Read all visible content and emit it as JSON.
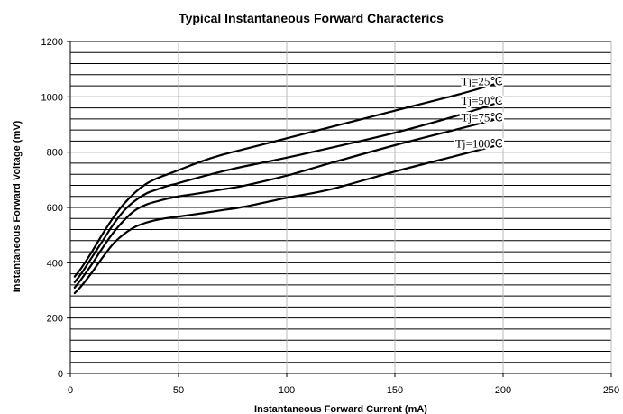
{
  "chart_data": {
    "type": "line",
    "title": "Typical Instantaneous Forward Characterics",
    "xlabel": "Instantaneous Forward Current (mA)",
    "ylabel": "Instantaneous Forward Voltage (mV)",
    "xlim": [
      0,
      250
    ],
    "ylim": [
      0,
      1200
    ],
    "x_ticks": [
      0,
      50,
      100,
      150,
      200,
      250
    ],
    "y_ticks": [
      0,
      200,
      400,
      600,
      800,
      1000,
      1200
    ],
    "x_grid_lines": [
      50,
      100,
      150,
      200,
      250
    ],
    "y_grid_lines": [
      40,
      80,
      120,
      160,
      200,
      240,
      280,
      320,
      360,
      400,
      440,
      480,
      520,
      560,
      600,
      640,
      680,
      720,
      760,
      800,
      840,
      880,
      920,
      960,
      1000,
      1040,
      1080,
      1120,
      1160,
      1200
    ],
    "grid": true,
    "colors": {
      "series": "#000000",
      "grid_major_x": "#b8b8b8",
      "grid_minor_y": "#000000",
      "background": "#ffffff"
    },
    "series": [
      {
        "name": "Tj=25℃",
        "x": [
          2,
          5,
          10,
          15,
          20,
          25,
          30,
          35,
          40,
          45,
          50,
          60,
          70,
          80,
          100,
          120,
          150,
          180,
          200
        ],
        "values": [
          350,
          380,
          440,
          505,
          565,
          615,
          655,
          685,
          705,
          720,
          735,
          765,
          790,
          810,
          850,
          890,
          950,
          1010,
          1055
        ]
      },
      {
        "name": "Tj=50℃",
        "x": [
          2,
          5,
          10,
          15,
          20,
          25,
          30,
          35,
          40,
          45,
          50,
          60,
          70,
          80,
          100,
          120,
          150,
          180,
          200
        ],
        "values": [
          330,
          360,
          420,
          480,
          540,
          590,
          625,
          650,
          665,
          678,
          688,
          710,
          730,
          748,
          780,
          815,
          870,
          935,
          985
        ]
      },
      {
        "name": "Tj=75℃",
        "x": [
          2,
          5,
          10,
          15,
          20,
          25,
          30,
          35,
          40,
          45,
          50,
          60,
          70,
          80,
          100,
          120,
          150,
          180,
          200
        ],
        "values": [
          310,
          340,
          395,
          455,
          510,
          555,
          590,
          610,
          622,
          632,
          640,
          652,
          665,
          678,
          715,
          760,
          825,
          885,
          925
        ]
      },
      {
        "name": "Tj=100℃",
        "x": [
          2,
          5,
          10,
          15,
          20,
          25,
          30,
          35,
          40,
          45,
          50,
          60,
          70,
          80,
          100,
          120,
          150,
          180,
          200
        ],
        "values": [
          290,
          315,
          365,
          420,
          470,
          505,
          530,
          545,
          555,
          562,
          567,
          578,
          590,
          602,
          635,
          665,
          730,
          790,
          830
        ]
      }
    ]
  }
}
